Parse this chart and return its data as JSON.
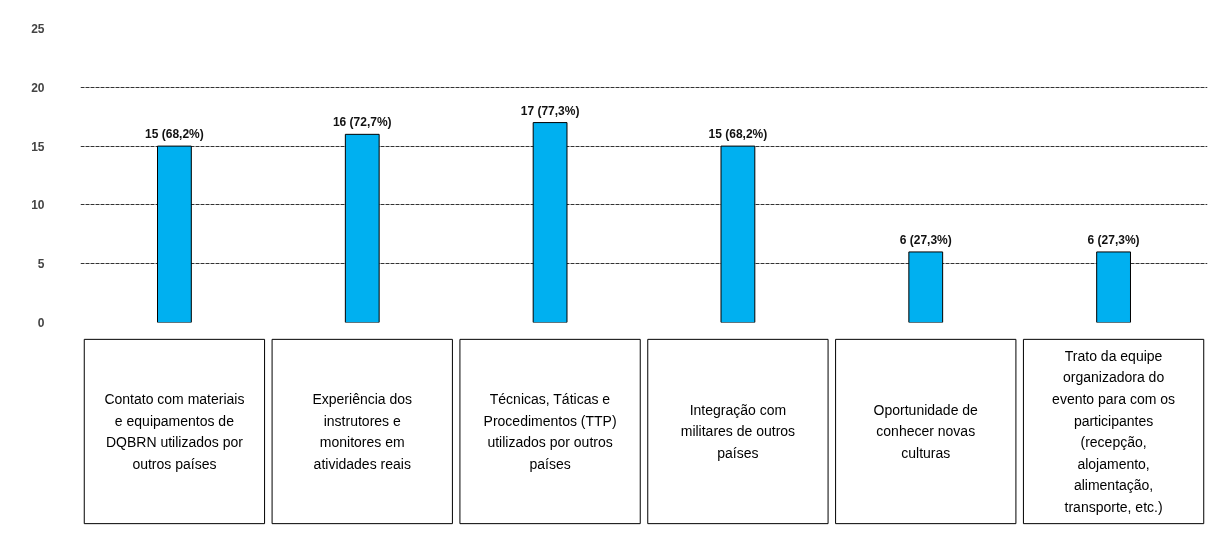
{
  "chart_data": {
    "type": "bar",
    "categories": [
      "Contato com materiais e equipamentos de DQBRN utilizados por outros países",
      "Experiência dos instrutores e monitores em atividades reais",
      "Técnicas, Táticas e Procedimentos (TTP) utilizados por outros países",
      "Integração com militares de outros países",
      "Oportunidade de conhecer novas culturas",
      "Trato da equipe organizadora do evento para com os participantes (recepção, alojamento, alimentação, transporte, etc.)"
    ],
    "values": [
      15,
      16,
      17,
      15,
      6,
      6
    ],
    "value_labels": [
      "15 (68,2%)",
      "16 (72,7%)",
      "17 (77,3%)",
      "15 (68,2%)",
      "6 (27,3%)",
      "6 (27,3%)"
    ],
    "color": "#00b0f0",
    "ylim": [
      0,
      25
    ],
    "yticks": [
      0,
      5,
      10,
      15,
      20,
      25
    ],
    "grid": "y"
  }
}
